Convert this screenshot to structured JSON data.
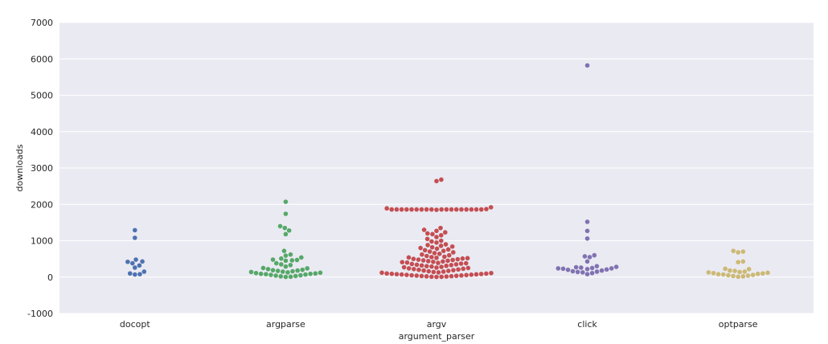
{
  "chart_data": {
    "type": "scatter",
    "style": "swarm",
    "xlabel": "argument_parser",
    "ylabel": "downloads",
    "ylim": [
      -1000,
      7000
    ],
    "yticks": [
      -1000,
      0,
      1000,
      2000,
      3000,
      4000,
      5000,
      6000,
      7000
    ],
    "grid": true,
    "colors": {
      "background": "#eaeaf2",
      "grid": "#ffffff",
      "docopt": "#4c72b0",
      "argparse": "#55a868",
      "argv": "#c44e52",
      "click": "#8172b2",
      "optparse": "#ccb974"
    },
    "categories": [
      "docopt",
      "argparse",
      "argv",
      "click",
      "optparse"
    ],
    "series": [
      {
        "category": "docopt",
        "values": [
          1290,
          1080,
          480,
          420,
          430,
          380,
          320,
          260,
          150,
          100,
          80,
          70
        ]
      },
      {
        "category": "argparse",
        "values": [
          2070,
          1740,
          1400,
          1350,
          1280,
          1180,
          720,
          620,
          590,
          540,
          510,
          480,
          470,
          460,
          450,
          380,
          350,
          330,
          290,
          250,
          240,
          220,
          200,
          190,
          180,
          170,
          160,
          150,
          140,
          130,
          120,
          110,
          100,
          90,
          90,
          80,
          70,
          60,
          50,
          40,
          30,
          20,
          10,
          5
        ]
      },
      {
        "category": "argv",
        "values": [
          2680,
          2640,
          1920,
          1890,
          1870,
          1860,
          1860,
          1860,
          1860,
          1860,
          1860,
          1860,
          1860,
          1860,
          1860,
          1860,
          1860,
          1860,
          1860,
          1860,
          1860,
          1860,
          1860,
          1850,
          1350,
          1300,
          1270,
          1230,
          1200,
          1180,
          1150,
          1100,
          1050,
          1000,
          980,
          950,
          900,
          880,
          860,
          840,
          820,
          800,
          780,
          760,
          740,
          720,
          700,
          680,
          660,
          640,
          620,
          600,
          580,
          560,
          550,
          540,
          530,
          520,
          510,
          500,
          490,
          480,
          470,
          460,
          450,
          440,
          430,
          420,
          410,
          400,
          390,
          380,
          370,
          360,
          350,
          340,
          330,
          320,
          310,
          300,
          290,
          280,
          270,
          260,
          250,
          240,
          230,
          220,
          210,
          200,
          190,
          180,
          170,
          160,
          150,
          140,
          130,
          120,
          110,
          100,
          95,
          90,
          85,
          80,
          75,
          70,
          65,
          60,
          55,
          50,
          45,
          40,
          35,
          30,
          25,
          20,
          15,
          10,
          8,
          5
        ]
      },
      {
        "category": "click",
        "values": [
          5820,
          1520,
          1270,
          1060,
          600,
          570,
          550,
          430,
          300,
          280,
          270,
          260,
          250,
          240,
          240,
          230,
          220,
          210,
          200,
          180,
          160,
          150,
          140,
          130,
          110,
          80
        ]
      },
      {
        "category": "optparse",
        "values": [
          720,
          700,
          680,
          430,
          410,
          230,
          220,
          180,
          170,
          150,
          140,
          130,
          120,
          110,
          100,
          90,
          80,
          70,
          60,
          50,
          40,
          30,
          20,
          10
        ]
      }
    ]
  }
}
